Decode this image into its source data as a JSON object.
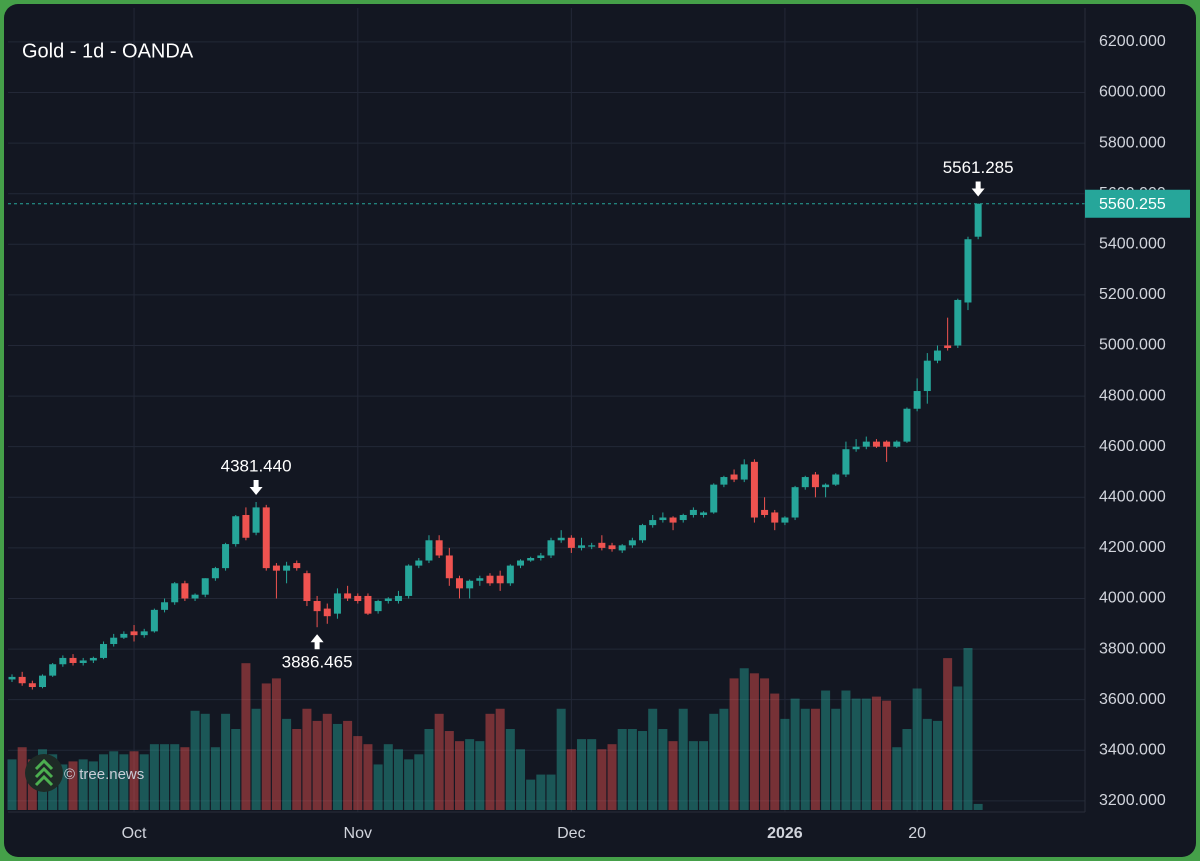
{
  "chart_data": {
    "type": "candlestick",
    "title": "Gold - 1d - OANDA",
    "watermark": "© tree.news",
    "categories": [
      null,
      null,
      null,
      null,
      null,
      null,
      null,
      null,
      null,
      null,
      null,
      null,
      "Oct",
      null,
      null,
      null,
      null,
      null,
      null,
      null,
      null,
      null,
      null,
      null,
      null,
      null,
      null,
      null,
      null,
      null,
      null,
      null,
      null,
      null,
      "Nov",
      null,
      null,
      null,
      null,
      null,
      null,
      null,
      null,
      null,
      null,
      null,
      null,
      null,
      null,
      null,
      null,
      null,
      null,
      null,
      null,
      "Dec",
      null,
      null,
      null,
      null,
      null,
      null,
      null,
      null,
      null,
      null,
      null,
      null,
      null,
      null,
      null,
      null,
      null,
      null,
      null,
      null,
      "2026",
      null,
      null,
      null,
      null,
      null,
      null,
      null,
      null,
      null,
      null,
      null,
      null,
      "20",
      null,
      null,
      null,
      null,
      null,
      null
    ],
    "open": [
      3680,
      3690,
      3665,
      3650,
      3695,
      3740,
      3765,
      3745,
      3755,
      3765,
      3820,
      3845,
      3870,
      3855,
      3870,
      3955,
      3985,
      4060,
      4000,
      4015,
      4080,
      4120,
      4215,
      4330,
      4260,
      4360,
      4130,
      4110,
      4140,
      4100,
      3990,
      3960,
      3940,
      4020,
      4010,
      4010,
      3950,
      3990,
      3990,
      4010,
      4130,
      4150,
      4230,
      4170,
      4080,
      4040,
      4070,
      4090,
      4090,
      4060,
      4130,
      4150,
      4160,
      4170,
      4230,
      4240,
      4200,
      4205,
      4220,
      4210,
      4190,
      4210,
      4230,
      4290,
      4310,
      4320,
      4310,
      4330,
      4330,
      4340,
      4450,
      4490,
      4470,
      4540,
      4350,
      4340,
      4300,
      4320,
      4440,
      4490,
      4440,
      4450,
      4490,
      4590,
      4600,
      4620,
      4620,
      4600,
      4620,
      4750,
      4820,
      4940,
      5000,
      5000,
      5170,
      5430
    ],
    "high": [
      3700,
      3710,
      3675,
      3700,
      3745,
      3775,
      3780,
      3765,
      3770,
      3830,
      3860,
      3870,
      3895,
      3880,
      3960,
      4000,
      4065,
      4070,
      4020,
      4080,
      4125,
      4220,
      4330,
      4360,
      4381.44,
      4370,
      4140,
      4145,
      4150,
      4110,
      4010,
      3980,
      4040,
      4050,
      4020,
      4020,
      3995,
      4005,
      4030,
      4135,
      4160,
      4250,
      4250,
      4200,
      4090,
      4075,
      4090,
      4100,
      4110,
      4135,
      4155,
      4165,
      4180,
      4240,
      4270,
      4250,
      4240,
      4220,
      4250,
      4220,
      4215,
      4240,
      4295,
      4330,
      4340,
      4325,
      4335,
      4360,
      4345,
      4455,
      4485,
      4510,
      4550,
      4550,
      4400,
      4350,
      4325,
      4445,
      4485,
      4500,
      4455,
      4495,
      4620,
      4630,
      4640,
      4630,
      4625,
      4625,
      4755,
      4870,
      4970,
      5000,
      5110,
      5185,
      5430,
      5561.285
    ],
    "low": [
      3670,
      3655,
      3640,
      3645,
      3690,
      3730,
      3735,
      3735,
      3745,
      3760,
      3810,
      3840,
      3830,
      3845,
      3865,
      3945,
      3975,
      3990,
      3990,
      4005,
      4070,
      4110,
      4205,
      4230,
      4250,
      4110,
      4000,
      4060,
      4110,
      3970,
      3886.465,
      3900,
      3920,
      3990,
      3980,
      3935,
      3940,
      3980,
      3980,
      4000,
      4120,
      4140,
      4160,
      4050,
      4000,
      4000,
      4050,
      4050,
      4030,
      4050,
      4120,
      4145,
      4150,
      4160,
      4220,
      4180,
      4190,
      4195,
      4190,
      4185,
      4180,
      4200,
      4220,
      4280,
      4300,
      4270,
      4300,
      4320,
      4320,
      4335,
      4440,
      4460,
      4460,
      4300,
      4320,
      4270,
      4290,
      4310,
      4430,
      4400,
      4400,
      4445,
      4480,
      4580,
      4590,
      4595,
      4540,
      4595,
      4615,
      4740,
      4770,
      4930,
      4980,
      4990,
      5140,
      5420
    ],
    "close": [
      3690,
      3665,
      3650,
      3695,
      3740,
      3765,
      3745,
      3755,
      3765,
      3820,
      3845,
      3860,
      3855,
      3870,
      3955,
      3985,
      4060,
      4000,
      4015,
      4080,
      4120,
      4215,
      4325,
      4240,
      4360,
      4120,
      4110,
      4130,
      4120,
      3990,
      3950,
      3930,
      4020,
      4000,
      3990,
      3940,
      3990,
      4000,
      4010,
      4130,
      4150,
      4230,
      4170,
      4080,
      4040,
      4070,
      4080,
      4060,
      4060,
      4130,
      4150,
      4160,
      4170,
      4230,
      4240,
      4200,
      4210,
      4210,
      4200,
      4195,
      4210,
      4230,
      4290,
      4310,
      4320,
      4300,
      4330,
      4350,
      4340,
      4450,
      4480,
      4470,
      4530,
      4320,
      4330,
      4300,
      4320,
      4440,
      4480,
      4440,
      4450,
      4490,
      4590,
      4600,
      4620,
      4600,
      4600,
      4620,
      4750,
      4820,
      4940,
      4980,
      4990,
      5180,
      5420,
      5560.255
    ],
    "volume": [
      50,
      62,
      50,
      60,
      55,
      45,
      48,
      50,
      48,
      55,
      58,
      55,
      58,
      55,
      65,
      65,
      65,
      62,
      98,
      95,
      62,
      95,
      80,
      145,
      100,
      125,
      130,
      90,
      80,
      100,
      88,
      95,
      85,
      88,
      73,
      65,
      45,
      65,
      60,
      50,
      55,
      80,
      95,
      78,
      68,
      70,
      68,
      95,
      100,
      80,
      60,
      30,
      35,
      35,
      100,
      60,
      70,
      70,
      60,
      65,
      80,
      80,
      78,
      100,
      80,
      68,
      100,
      68,
      68,
      95,
      100,
      130,
      140,
      135,
      130,
      115,
      90,
      110,
      100,
      100,
      118,
      100,
      118,
      110,
      110,
      112,
      108,
      62,
      80,
      120,
      90,
      88,
      150,
      122,
      160,
      6
    ],
    "up_color": "#26a69a",
    "down_color": "#ef5350",
    "ylim": [
      3156,
      6334
    ],
    "yticks": [
      {
        "value": 3200,
        "label": "3200.000"
      },
      {
        "value": 3400,
        "label": "3400.000"
      },
      {
        "value": 3600,
        "label": "3600.000"
      },
      {
        "value": 3800,
        "label": "3800.000"
      },
      {
        "value": 4000,
        "label": "4000.000"
      },
      {
        "value": 4200,
        "label": "4200.000"
      },
      {
        "value": 4400,
        "label": "4400.000"
      },
      {
        "value": 4600,
        "label": "4600.000"
      },
      {
        "value": 4800,
        "label": "4800.000"
      },
      {
        "value": 5000,
        "label": "5000.000"
      },
      {
        "value": 5200,
        "label": "5200.000"
      },
      {
        "value": 5400,
        "label": "5400.000"
      },
      {
        "value": 5600,
        "label": "5600.000"
      },
      {
        "value": 5800,
        "label": "5800.000"
      },
      {
        "value": 6000,
        "label": "6000.000"
      },
      {
        "value": 6200,
        "label": "6200.000"
      }
    ],
    "grid": true,
    "last_price": {
      "value": 5560.255,
      "label": "5560.255"
    },
    "annotations": [
      {
        "value": 4381.44,
        "label": "4381.440"
      },
      {
        "value": 3886.465,
        "label": "3886.465"
      },
      {
        "value": 5561.285,
        "label": "5561.285"
      }
    ]
  }
}
